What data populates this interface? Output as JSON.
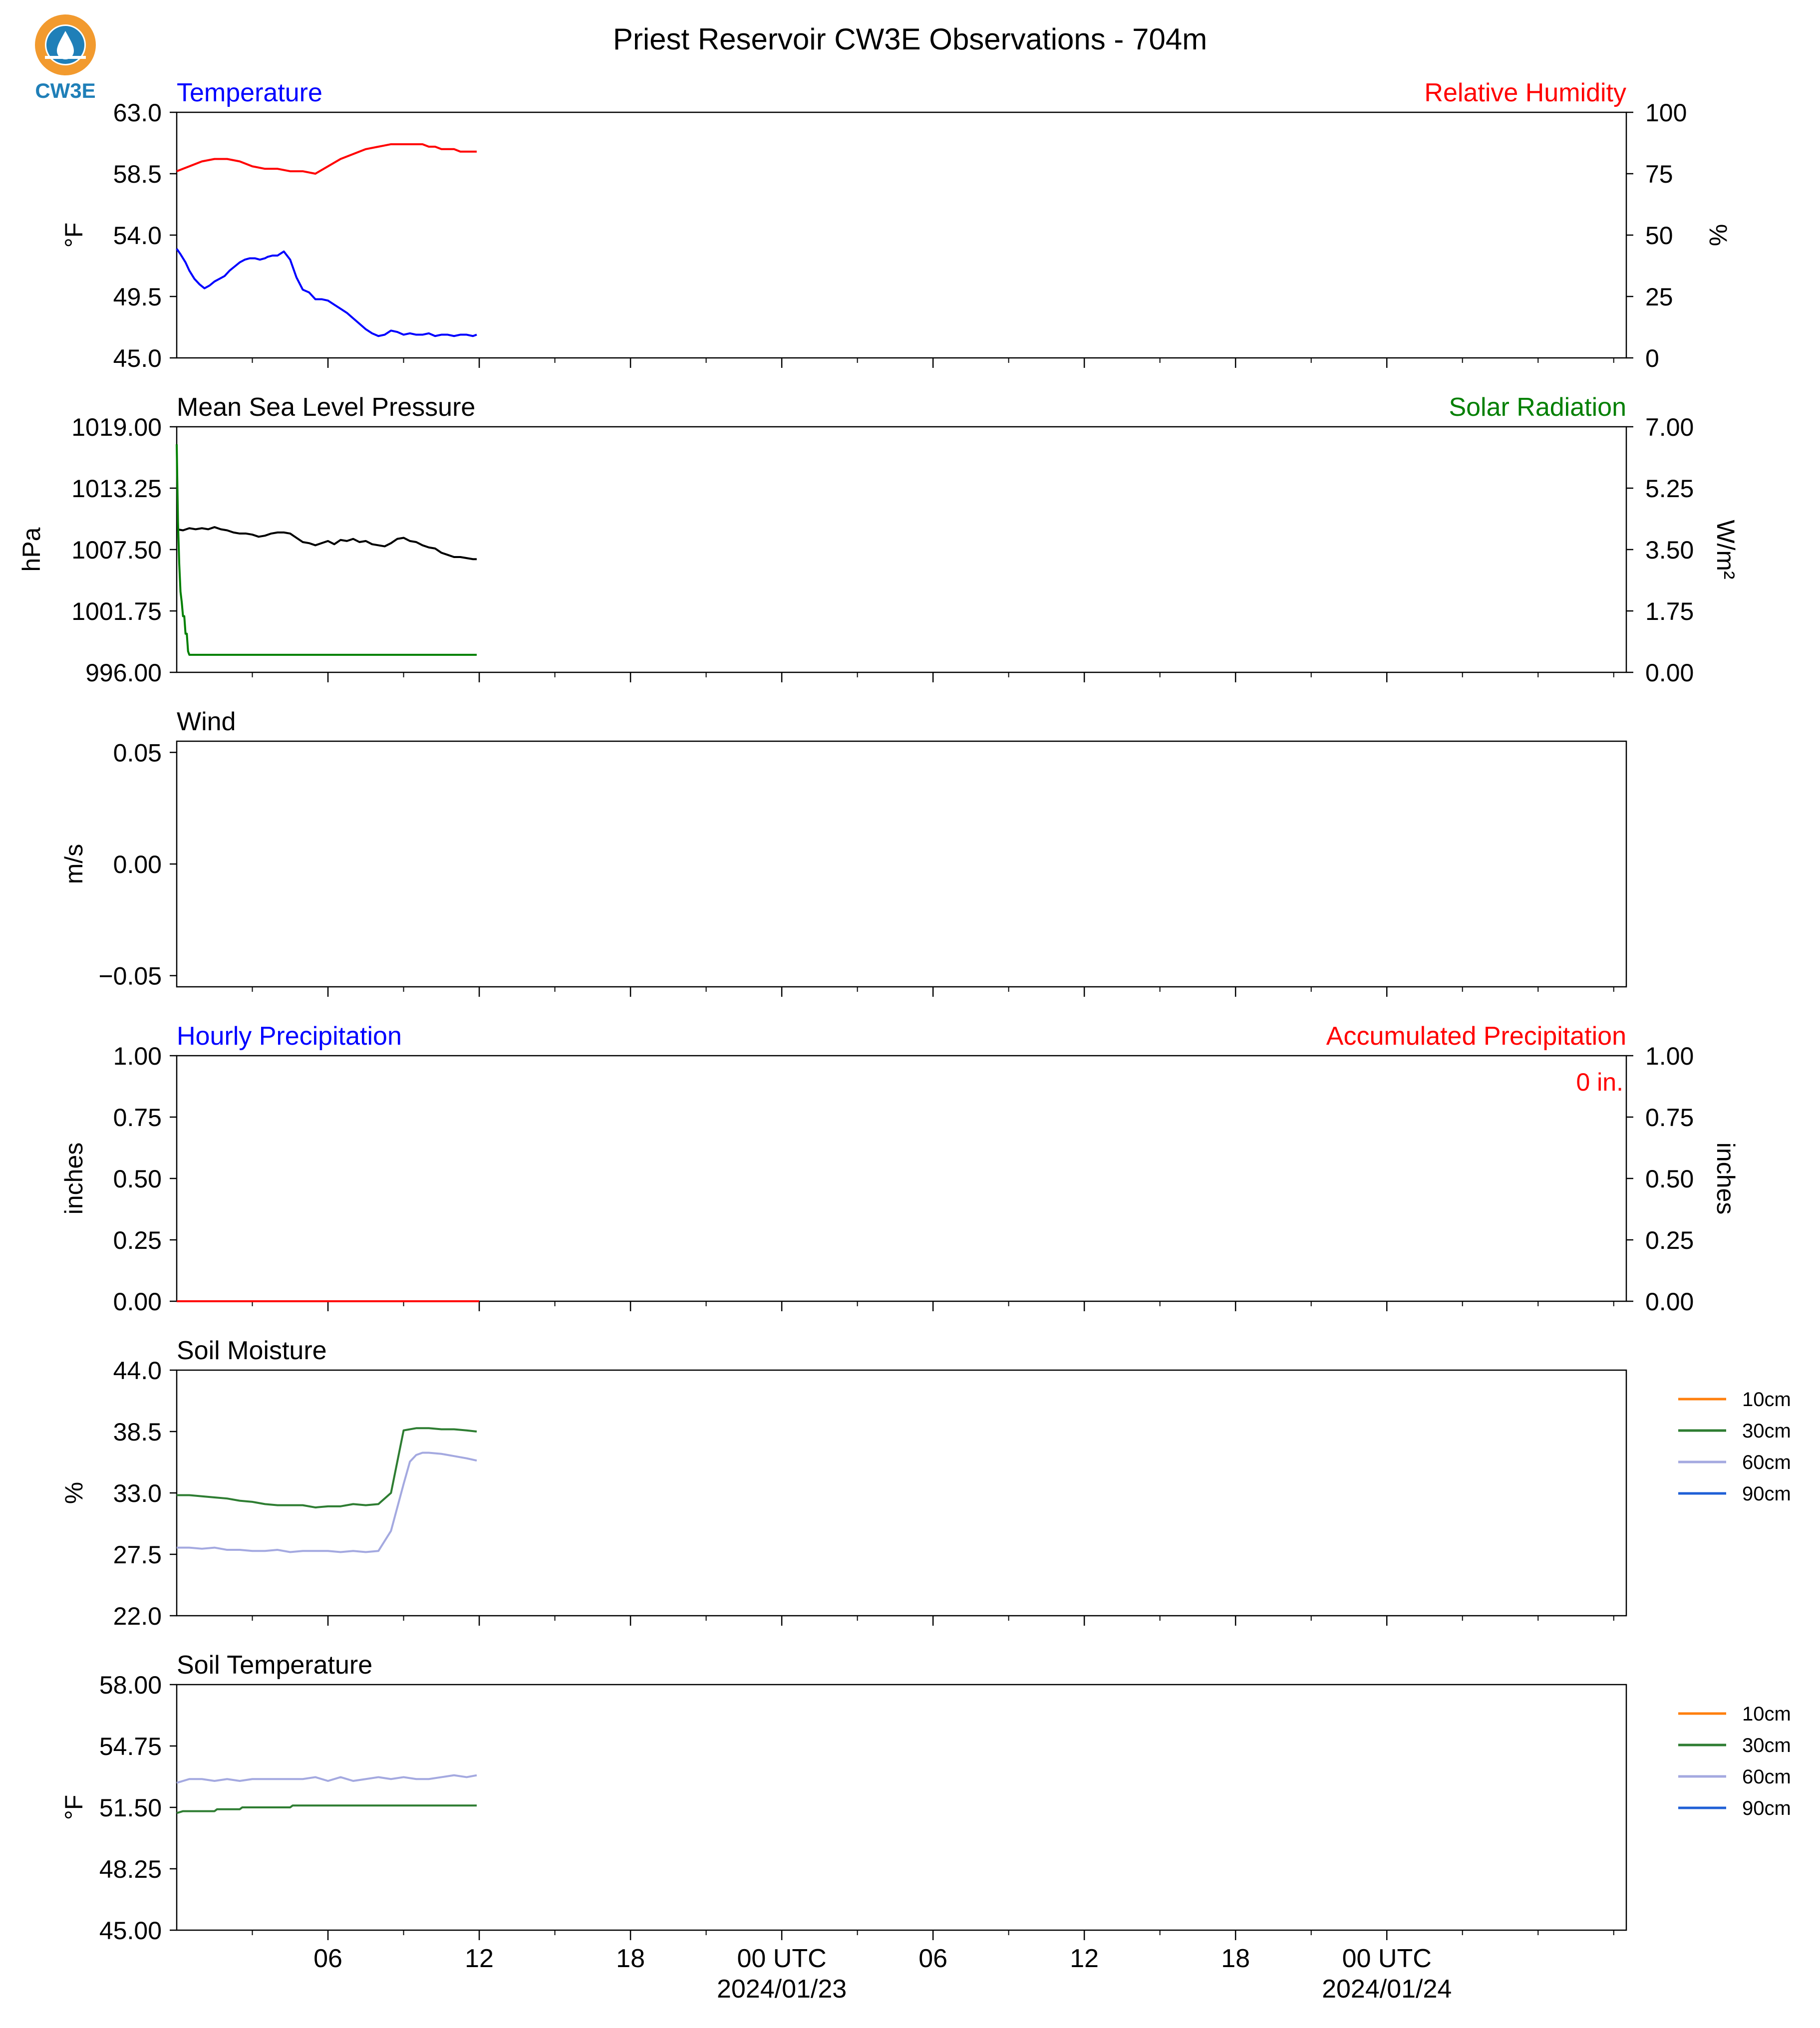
{
  "figure": {
    "title": "Priest Reservoir CW3E Observations - 704m",
    "logo_text": "CW3E",
    "x_axis": {
      "tick_labels": [
        "06",
        "12",
        "18",
        "00 UTC",
        "06",
        "12",
        "18",
        "00 UTC"
      ],
      "date_labels": [
        "2024/01/23",
        "2024/01/24"
      ]
    }
  },
  "colors": {
    "blue": "#0000ff",
    "red": "#ff0000",
    "green": "#007f00",
    "black": "#000000",
    "soil_10cm": "#ff7f0e",
    "soil_30cm": "#2e7d32",
    "soil_60cm": "#a4a9e0",
    "soil_90cm": "#1f5fd6",
    "logo_orange": "#f29a2e",
    "logo_blue": "#1f7fb8"
  },
  "chart_data": [
    {
      "type": "line",
      "left_title": "Temperature",
      "right_title": "Relative Humidity",
      "ylabel": "°F",
      "y2label": "%",
      "ylim": [
        45.0,
        63.0
      ],
      "y2lim": [
        0,
        100
      ],
      "yticks": [
        "45.0",
        "49.5",
        "54.0",
        "58.5",
        "63.0"
      ],
      "y2ticks": [
        "0",
        "25",
        "50",
        "75",
        "100"
      ],
      "series": [
        {
          "axis": "left",
          "color": "blue",
          "x": [
            0,
            0.3,
            0.7,
            1,
            1.4,
            1.8,
            2.2,
            2.6,
            3,
            3.4,
            3.8,
            4.2,
            4.6,
            5,
            5.4,
            5.8,
            6.2,
            6.6,
            7,
            7.2,
            7.6,
            8,
            8.5,
            9,
            9.5,
            10,
            10.5,
            11,
            11.5,
            12,
            12.5,
            13,
            13.5,
            14,
            14.5,
            15,
            15.5,
            16,
            16.5,
            17,
            17.5,
            18,
            18.5,
            19,
            19.5,
            20,
            20.5,
            21,
            21.5,
            22,
            22.5,
            23,
            23.5,
            23.8
          ],
          "y": [
            53.0,
            52.6,
            52.0,
            51.4,
            50.8,
            50.4,
            50.1,
            50.3,
            50.6,
            50.8,
            51.0,
            51.4,
            51.7,
            52.0,
            52.2,
            52.3,
            52.3,
            52.2,
            52.3,
            52.4,
            52.5,
            52.5,
            52.8,
            52.2,
            50.9,
            50.0,
            49.8,
            49.3,
            49.3,
            49.2,
            48.9,
            48.6,
            48.3,
            47.9,
            47.5,
            47.1,
            46.8,
            46.6,
            46.7,
            47.0,
            46.9,
            46.7,
            46.8,
            46.7,
            46.7,
            46.8,
            46.6,
            46.7,
            46.7,
            46.6,
            46.7,
            46.7,
            46.6,
            46.7
          ]
        },
        {
          "axis": "right",
          "color": "red",
          "x": [
            0,
            0.5,
            1,
            2,
            3,
            4,
            5,
            6,
            7,
            8,
            9,
            10,
            11,
            12,
            13,
            14,
            15,
            16,
            17,
            18,
            19,
            19.5,
            20,
            20.5,
            21,
            21.5,
            22,
            22.5,
            23,
            23.5,
            23.8
          ],
          "y": [
            76,
            77,
            78,
            80,
            81,
            81,
            80,
            78,
            77,
            77,
            76,
            76,
            75,
            78,
            81,
            83,
            85,
            86,
            87,
            87,
            87,
            87,
            86,
            86,
            85,
            85,
            85,
            84,
            84,
            84,
            84
          ]
        }
      ]
    },
    {
      "type": "line",
      "left_title": "Mean Sea Level Pressure",
      "right_title": "Solar Radiation",
      "ylabel": "hPa",
      "y2label": "W/m²",
      "ylim": [
        996.0,
        1019.0
      ],
      "y2lim": [
        0.0,
        7.0
      ],
      "yticks": [
        "996.00",
        "1001.75",
        "1007.50",
        "1013.25",
        "1019.00"
      ],
      "y2ticks": [
        "0.00",
        "1.75",
        "3.50",
        "5.25",
        "7.00"
      ],
      "series": [
        {
          "axis": "left",
          "color": "black",
          "x": [
            0,
            0.5,
            1,
            1.5,
            2,
            2.5,
            3,
            3.5,
            4,
            4.5,
            5,
            5.5,
            6,
            6.5,
            7,
            7.5,
            8,
            8.5,
            9,
            9.5,
            10,
            10.5,
            11,
            11.5,
            12,
            12.5,
            13,
            13.5,
            14,
            14.5,
            15,
            15.5,
            16,
            16.5,
            17,
            17.5,
            18,
            18.5,
            19,
            19.5,
            20,
            20.5,
            21,
            21.5,
            22,
            22.5,
            23,
            23.5,
            23.8
          ],
          "y": [
            1009.4,
            1009.3,
            1009.5,
            1009.4,
            1009.5,
            1009.4,
            1009.6,
            1009.4,
            1009.3,
            1009.1,
            1009.0,
            1009.0,
            1008.9,
            1008.7,
            1008.8,
            1009.0,
            1009.1,
            1009.1,
            1009.0,
            1008.6,
            1008.2,
            1008.1,
            1007.9,
            1008.1,
            1008.3,
            1008.0,
            1008.4,
            1008.3,
            1008.5,
            1008.2,
            1008.3,
            1008.0,
            1007.9,
            1007.8,
            1008.1,
            1008.5,
            1008.6,
            1008.3,
            1008.2,
            1007.9,
            1007.7,
            1007.6,
            1007.2,
            1007.0,
            1006.8,
            1006.8,
            1006.7,
            1006.6,
            1006.6
          ]
        },
        {
          "axis": "right",
          "color": "green",
          "x": [
            0,
            0.1,
            0.2,
            0.3,
            0.4,
            0.5,
            0.6,
            0.7,
            0.8,
            0.9,
            1,
            23.8
          ],
          "y": [
            6.5,
            4.3,
            3.1,
            2.3,
            2.0,
            1.6,
            1.6,
            1.1,
            1.1,
            0.6,
            0.5,
            0.5
          ]
        }
      ]
    },
    {
      "type": "line",
      "left_title": "Wind",
      "ylabel": "m/s",
      "ylim": [
        -0.055,
        0.055
      ],
      "yticks": [
        "−0.05",
        "0.00",
        "0.05"
      ],
      "ytick_values": [
        -0.05,
        0.0,
        0.05
      ],
      "series": []
    },
    {
      "type": "line",
      "left_title": "Hourly Precipitation",
      "right_title": "Accumulated Precipitation",
      "ylabel": "inches",
      "y2label": "inches",
      "ylim": [
        0.0,
        1.0
      ],
      "y2lim": [
        0.0,
        1.0
      ],
      "yticks": [
        "0.00",
        "0.25",
        "0.50",
        "0.75",
        "1.00"
      ],
      "y2ticks": [
        "0.00",
        "0.25",
        "0.50",
        "0.75",
        "1.00"
      ],
      "annotation": "0 in.",
      "series": [
        {
          "axis": "right",
          "color": "red",
          "x": [
            0,
            24
          ],
          "y": [
            0,
            0
          ]
        }
      ]
    },
    {
      "type": "line",
      "left_title": "Soil Moisture",
      "ylabel": "%",
      "ylim": [
        22.0,
        44.0
      ],
      "yticks": [
        "22.0",
        "27.5",
        "33.0",
        "38.5",
        "44.0"
      ],
      "legend": [
        "10cm",
        "30cm",
        "60cm",
        "90cm"
      ],
      "series": [
        {
          "name": "30cm",
          "color": "soil_30cm",
          "x": [
            0,
            1,
            2,
            3,
            4,
            5,
            6,
            7,
            8,
            9,
            10,
            11,
            12,
            13,
            14,
            15,
            16,
            17,
            18,
            19,
            20,
            21,
            22,
            23,
            23.8
          ],
          "y": [
            32.8,
            32.8,
            32.7,
            32.6,
            32.5,
            32.3,
            32.2,
            32.0,
            31.9,
            31.9,
            31.9,
            31.7,
            31.8,
            31.8,
            32.0,
            31.9,
            32.0,
            33.0,
            38.6,
            38.8,
            38.8,
            38.7,
            38.7,
            38.6,
            38.5
          ]
        },
        {
          "name": "60cm",
          "color": "soil_60cm",
          "x": [
            0,
            1,
            2,
            3,
            4,
            5,
            6,
            7,
            8,
            9,
            10,
            11,
            12,
            13,
            14,
            15,
            16,
            17,
            18,
            18.5,
            19,
            19.5,
            20,
            21,
            22,
            23,
            23.8
          ],
          "y": [
            28.1,
            28.1,
            28.0,
            28.1,
            27.9,
            27.9,
            27.8,
            27.8,
            27.9,
            27.7,
            27.8,
            27.8,
            27.8,
            27.7,
            27.8,
            27.7,
            27.8,
            29.6,
            33.8,
            35.8,
            36.4,
            36.6,
            36.6,
            36.5,
            36.3,
            36.1,
            35.9
          ]
        }
      ]
    },
    {
      "type": "line",
      "left_title": "Soil Temperature",
      "ylabel": "°F",
      "ylim": [
        45.0,
        58.0
      ],
      "yticks": [
        "45.00",
        "48.25",
        "51.50",
        "54.75",
        "58.00"
      ],
      "legend": [
        "10cm",
        "30cm",
        "60cm",
        "90cm"
      ],
      "series": [
        {
          "name": "30cm",
          "color": "soil_30cm",
          "x": [
            0,
            0.5,
            1,
            2,
            3,
            3.2,
            4,
            5,
            5.2,
            6,
            7,
            8,
            9,
            9.2,
            10,
            11,
            12,
            13,
            14,
            15,
            16,
            17,
            18,
            19,
            20,
            21,
            22,
            23,
            23.8
          ],
          "y": [
            51.2,
            51.3,
            51.3,
            51.3,
            51.3,
            51.4,
            51.4,
            51.4,
            51.5,
            51.5,
            51.5,
            51.5,
            51.5,
            51.6,
            51.6,
            51.6,
            51.6,
            51.6,
            51.6,
            51.6,
            51.6,
            51.6,
            51.6,
            51.6,
            51.6,
            51.6,
            51.6,
            51.6,
            51.6
          ]
        },
        {
          "name": "60cm",
          "color": "soil_60cm",
          "x": [
            0,
            1,
            2,
            3,
            4,
            5,
            6,
            7,
            8,
            9,
            10,
            11,
            12,
            13,
            14,
            15,
            16,
            17,
            18,
            19,
            20,
            21,
            22,
            23,
            23.8
          ],
          "y": [
            52.8,
            53.0,
            53.0,
            52.9,
            53.0,
            52.9,
            53.0,
            53.0,
            53.0,
            53.0,
            53.0,
            53.1,
            52.9,
            53.1,
            52.9,
            53.0,
            53.1,
            53.0,
            53.1,
            53.0,
            53.0,
            53.1,
            53.2,
            53.1,
            53.2
          ]
        }
      ]
    }
  ]
}
